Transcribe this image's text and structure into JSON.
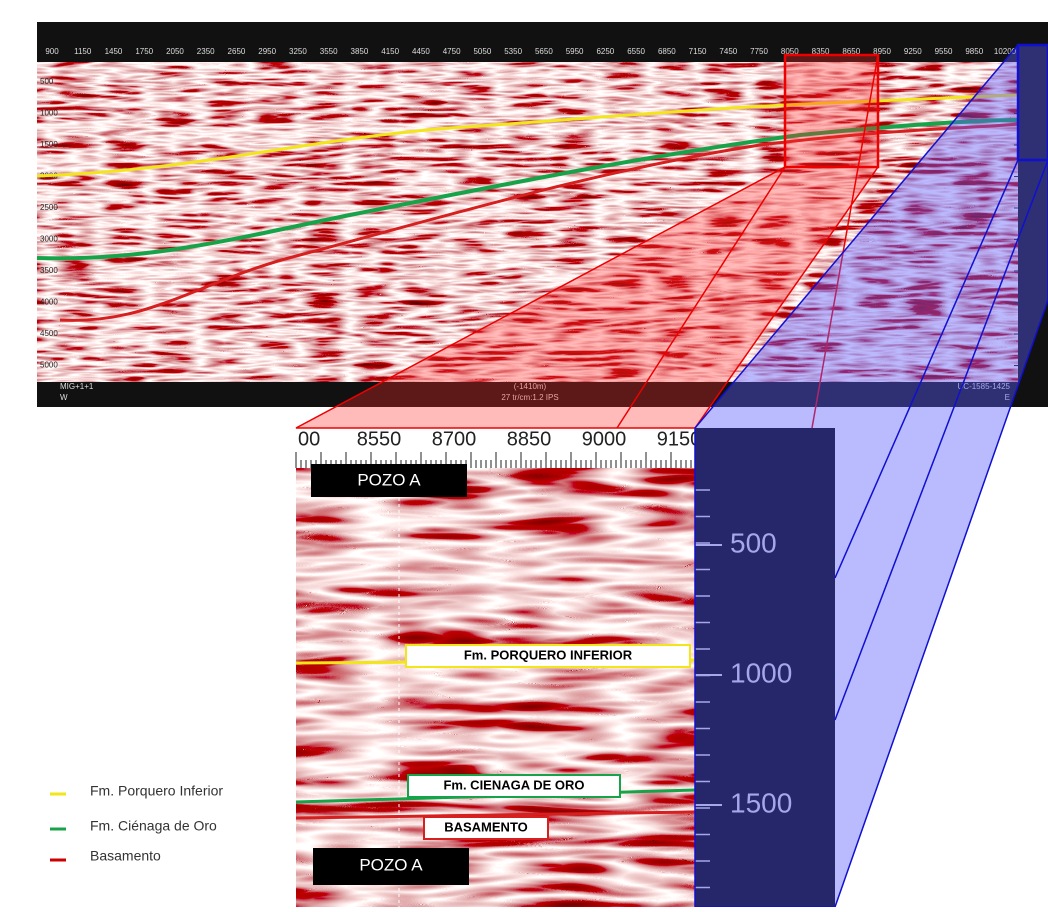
{
  "overview": {
    "x_axis": [
      "900",
      "1150",
      "1450",
      "1750",
      "2050",
      "2350",
      "2650",
      "2950",
      "3250",
      "3550",
      "3850",
      "4150",
      "4450",
      "4750",
      "5050",
      "5350",
      "5650",
      "5950",
      "6250",
      "6550",
      "6850",
      "7150",
      "7450",
      "7750",
      "8050",
      "8350",
      "8650",
      "8950",
      "9250",
      "9550",
      "9850",
      "10200"
    ],
    "y_axis": [
      "500",
      "1000",
      "1500",
      "2000",
      "2500",
      "3000",
      "3500",
      "4000",
      "4500",
      "5000"
    ],
    "footer": {
      "left_top": "MIG+1+1",
      "left_bottom": "W",
      "center_top": "(-1410m)",
      "center_bottom": "27 tr/cm:1.2 IPS",
      "right_top": "UC-1585-1425",
      "right_bottom": "E"
    }
  },
  "zoom": {
    "x_axis": [
      "00",
      "8550",
      "8700",
      "8850",
      "9000",
      "9150"
    ],
    "y_axis": [
      "500",
      "1000",
      "1500"
    ],
    "wells": [
      "POZO A",
      "POZO A"
    ],
    "horizons": [
      "Fm. PORQUERO INFERIOR",
      "Fm. CIENAGA DE ORO",
      "BASAMENTO"
    ]
  },
  "legend": [
    "Fm. Porquero Inferior",
    "Fm. Ciénaga de Oro",
    "Basamento"
  ]
}
